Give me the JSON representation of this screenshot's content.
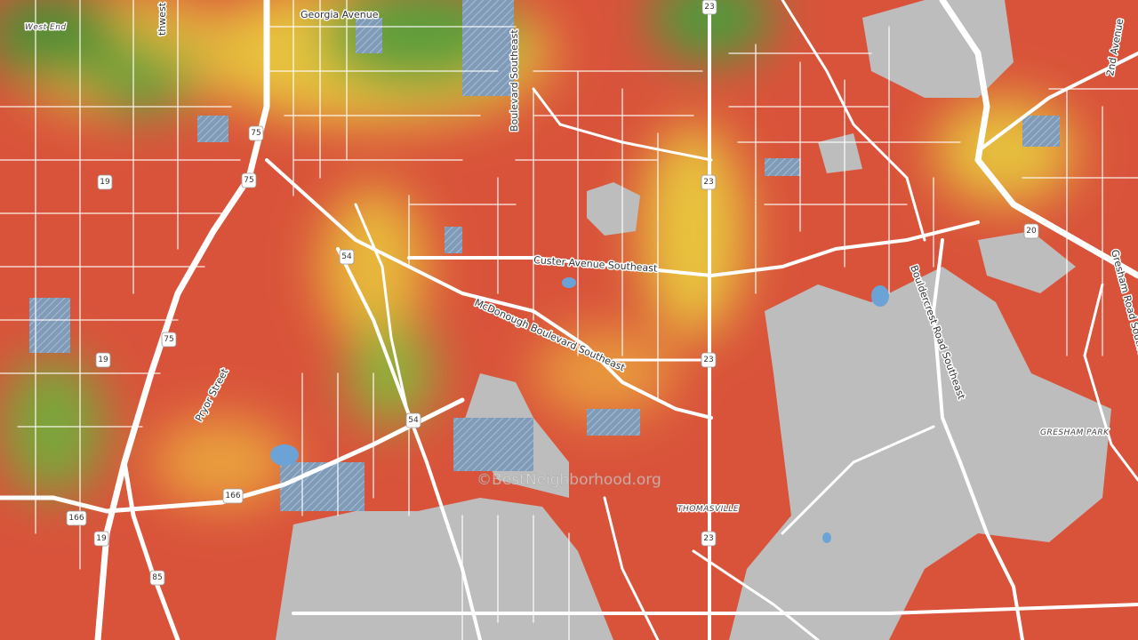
{
  "map": {
    "labels": {
      "west_end": "West End",
      "georgia_avenue": "Georgia Avenue",
      "northwest": "thwest",
      "boulevard": "Boulevard Southeast",
      "custer": "Custer Avenue Southeast",
      "mcdonough": "McDonough Boulevard Southeast",
      "bouldercrest": "Bouldercrest Road Southeast",
      "gresham_road": "Gresham Road Southeast",
      "second_avenue": "2nd Avenue",
      "pryor": "Pryor Street",
      "gresham_park": "GRESHAM PARK",
      "thomasville": "THOMASVILLE"
    },
    "shields": [
      "23",
      "75",
      "75",
      "19",
      "23",
      "54",
      "20",
      "75",
      "19",
      "23",
      "54",
      "166",
      "166",
      "19",
      "23",
      "85"
    ],
    "watermark": "©BestNeighborhood.org"
  }
}
